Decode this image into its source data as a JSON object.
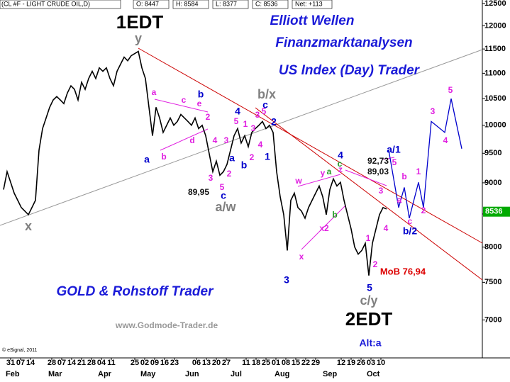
{
  "header": {
    "symbol": "(CL #F - LIGHT CRUDE OIL,D)",
    "open": "O: 8447",
    "high": "H: 8584",
    "low": "L: 8377",
    "close": "C: 8536",
    "net": "Net: +113"
  },
  "copyright": "© eSignal, 2011",
  "texts": {
    "title1": "Elliott Wellen",
    "title2": "Finanzmarktanalysen",
    "title3": "US Index (Day) Trader",
    "footer": "GOLD & Rohstoff Trader",
    "url": "www.Godmode-Trader.de",
    "alt": "Alt:a",
    "mob": "MoB 76,94",
    "top": "1EDT",
    "bottom": "2EDT"
  },
  "annotations": {
    "blue": [
      "a",
      "b",
      "4",
      "a",
      "b",
      "c",
      "2",
      "1",
      "3",
      "4",
      "5",
      "a/1",
      "b/2",
      "c"
    ],
    "magenta": [
      "a",
      "c",
      "e",
      "2",
      "d",
      "b",
      "4",
      "3",
      "3",
      "5",
      "2",
      "5",
      "1",
      "3",
      "2",
      "4",
      "5",
      "3",
      "w",
      "x",
      "x2",
      "y",
      "z",
      "3",
      "4",
      "1",
      "2",
      "5",
      "a",
      "b",
      "1",
      "2",
      "c",
      "3",
      "4",
      "5"
    ],
    "green": [
      "a",
      "b",
      "c"
    ],
    "gray": [
      "y",
      "x",
      "b/x",
      "a/w",
      "c/y"
    ],
    "levels": [
      "92,73",
      "89,03",
      "89,95"
    ]
  },
  "label_colors": {
    "blue": "#0000cc",
    "magenta": "#e020e0",
    "green": "#229922",
    "gray": "#808080",
    "levels": "#111111"
  },
  "chart_data": {
    "type": "line",
    "x": [
      1,
      2,
      3,
      4,
      5,
      6,
      7,
      8,
      9,
      10,
      11,
      12,
      13,
      14,
      15,
      16,
      17,
      18,
      19,
      20,
      21,
      22,
      23,
      24,
      25,
      26,
      27,
      28,
      29,
      30,
      31,
      32,
      33,
      34,
      35,
      36,
      37,
      38,
      39,
      40,
      41,
      42,
      43,
      44,
      45,
      46,
      47,
      48,
      49,
      50,
      51,
      52,
      53,
      54,
      55,
      56,
      57,
      58,
      59,
      60,
      61,
      62,
      63,
      64,
      65,
      66,
      67,
      68,
      69,
      70,
      71,
      72,
      73,
      74,
      75,
      76,
      77,
      78,
      79,
      80,
      81,
      82,
      83,
      84,
      85,
      86,
      87,
      88,
      89,
      90,
      91,
      92,
      93,
      94,
      95,
      96,
      97,
      98,
      99,
      100,
      101,
      102,
      103,
      104,
      105,
      106,
      107,
      108,
      109
    ],
    "series": [
      {
        "color": "#000000",
        "values": [
          8889,
          9185,
          9008,
          8831,
          8716,
          8601,
          8545,
          8489,
          8601,
          8716,
          9555,
          9940,
          10135,
          10335,
          10475,
          10540,
          10475,
          10405,
          10610,
          10750,
          10680,
          10475,
          10820,
          10680,
          10895,
          11040,
          10895,
          11110,
          11040,
          11110,
          10895,
          10750,
          11040,
          11185,
          11330,
          11255,
          11360,
          11405,
          11450,
          11110,
          10895,
          10335,
          9810,
          10335,
          10135,
          9870,
          10000,
          10135,
          10000,
          10070,
          10200,
          10135,
          10070,
          10000,
          10135,
          9940,
          10000,
          9810,
          9490,
          9185,
          9365,
          9125,
          9185,
          9308,
          9555,
          9810,
          9940,
          9680,
          9810,
          9615,
          9870,
          9940,
          10000,
          10070,
          9940,
          10000,
          9870,
          9185,
          8773,
          8489,
          7950,
          8716,
          8831,
          8601,
          8545,
          8434,
          8601,
          8716,
          8831,
          8947,
          8773,
          8489,
          8889,
          9065,
          8947,
          9008,
          8716,
          8489,
          8270,
          8001,
          7897,
          7950,
          8055,
          7593,
          8055,
          8270,
          8489,
          8601,
          8578
        ]
      },
      {
        "color": "#0000cc",
        "x": [
          109.6,
          112.4,
          114,
          115.4,
          118,
          119.4,
          121.6,
          125.4,
          127.2,
          130.2
        ],
        "values": [
          9555,
          8601,
          8924,
          8434,
          9008,
          8601,
          10070,
          9870,
          10500,
          9580
        ]
      }
    ],
    "xlim": [
      0,
      136
    ],
    "xticks": [
      {
        "value": 3,
        "label": "31"
      },
      {
        "value": 5.8,
        "label": "07"
      },
      {
        "value": 8.6,
        "label": "14"
      },
      {
        "value": 14.6,
        "label": "28"
      },
      {
        "value": 17.4,
        "label": "07"
      },
      {
        "value": 20.2,
        "label": "14"
      },
      {
        "value": 23,
        "label": "21"
      },
      {
        "value": 25.8,
        "label": "28"
      },
      {
        "value": 28.6,
        "label": "04"
      },
      {
        "value": 31.4,
        "label": "11"
      },
      {
        "value": 38,
        "label": "25"
      },
      {
        "value": 40.8,
        "label": "02"
      },
      {
        "value": 43.6,
        "label": "09"
      },
      {
        "value": 46.4,
        "label": "16"
      },
      {
        "value": 49.2,
        "label": "23"
      },
      {
        "value": 55.4,
        "label": "06"
      },
      {
        "value": 58.2,
        "label": "13"
      },
      {
        "value": 61,
        "label": "20"
      },
      {
        "value": 63.8,
        "label": "27"
      },
      {
        "value": 69.4,
        "label": "11"
      },
      {
        "value": 72.2,
        "label": "18"
      },
      {
        "value": 75,
        "label": "25"
      },
      {
        "value": 77.8,
        "label": "01"
      },
      {
        "value": 80.6,
        "label": "08"
      },
      {
        "value": 83.4,
        "label": "15"
      },
      {
        "value": 86.2,
        "label": "22"
      },
      {
        "value": 89,
        "label": "29"
      },
      {
        "value": 96.2,
        "label": "12"
      },
      {
        "value": 99,
        "label": "19"
      },
      {
        "value": 101.8,
        "label": "26"
      },
      {
        "value": 104.6,
        "label": "03"
      },
      {
        "value": 107.4,
        "label": "10"
      }
    ],
    "month_ticks": [
      {
        "value": 1.6,
        "label": "Feb"
      },
      {
        "value": 13.6,
        "label": "Mar"
      },
      {
        "value": 27.6,
        "label": "Apr"
      },
      {
        "value": 39.6,
        "label": "May"
      },
      {
        "value": 52.2,
        "label": "Jun"
      },
      {
        "value": 65,
        "label": "Jul"
      },
      {
        "value": 77.4,
        "label": "Aug"
      },
      {
        "value": 91,
        "label": "Sep"
      },
      {
        "value": 103.4,
        "label": "Oct"
      }
    ],
    "ylim": [
      6530,
      12580
    ],
    "yticks": [
      7000,
      7500,
      8000,
      8500,
      9000,
      9500,
      10000,
      10500,
      11000,
      11500,
      12000,
      12500
    ],
    "log_scale": true,
    "last_price": 8536,
    "last_price_color": "#00aa00"
  }
}
